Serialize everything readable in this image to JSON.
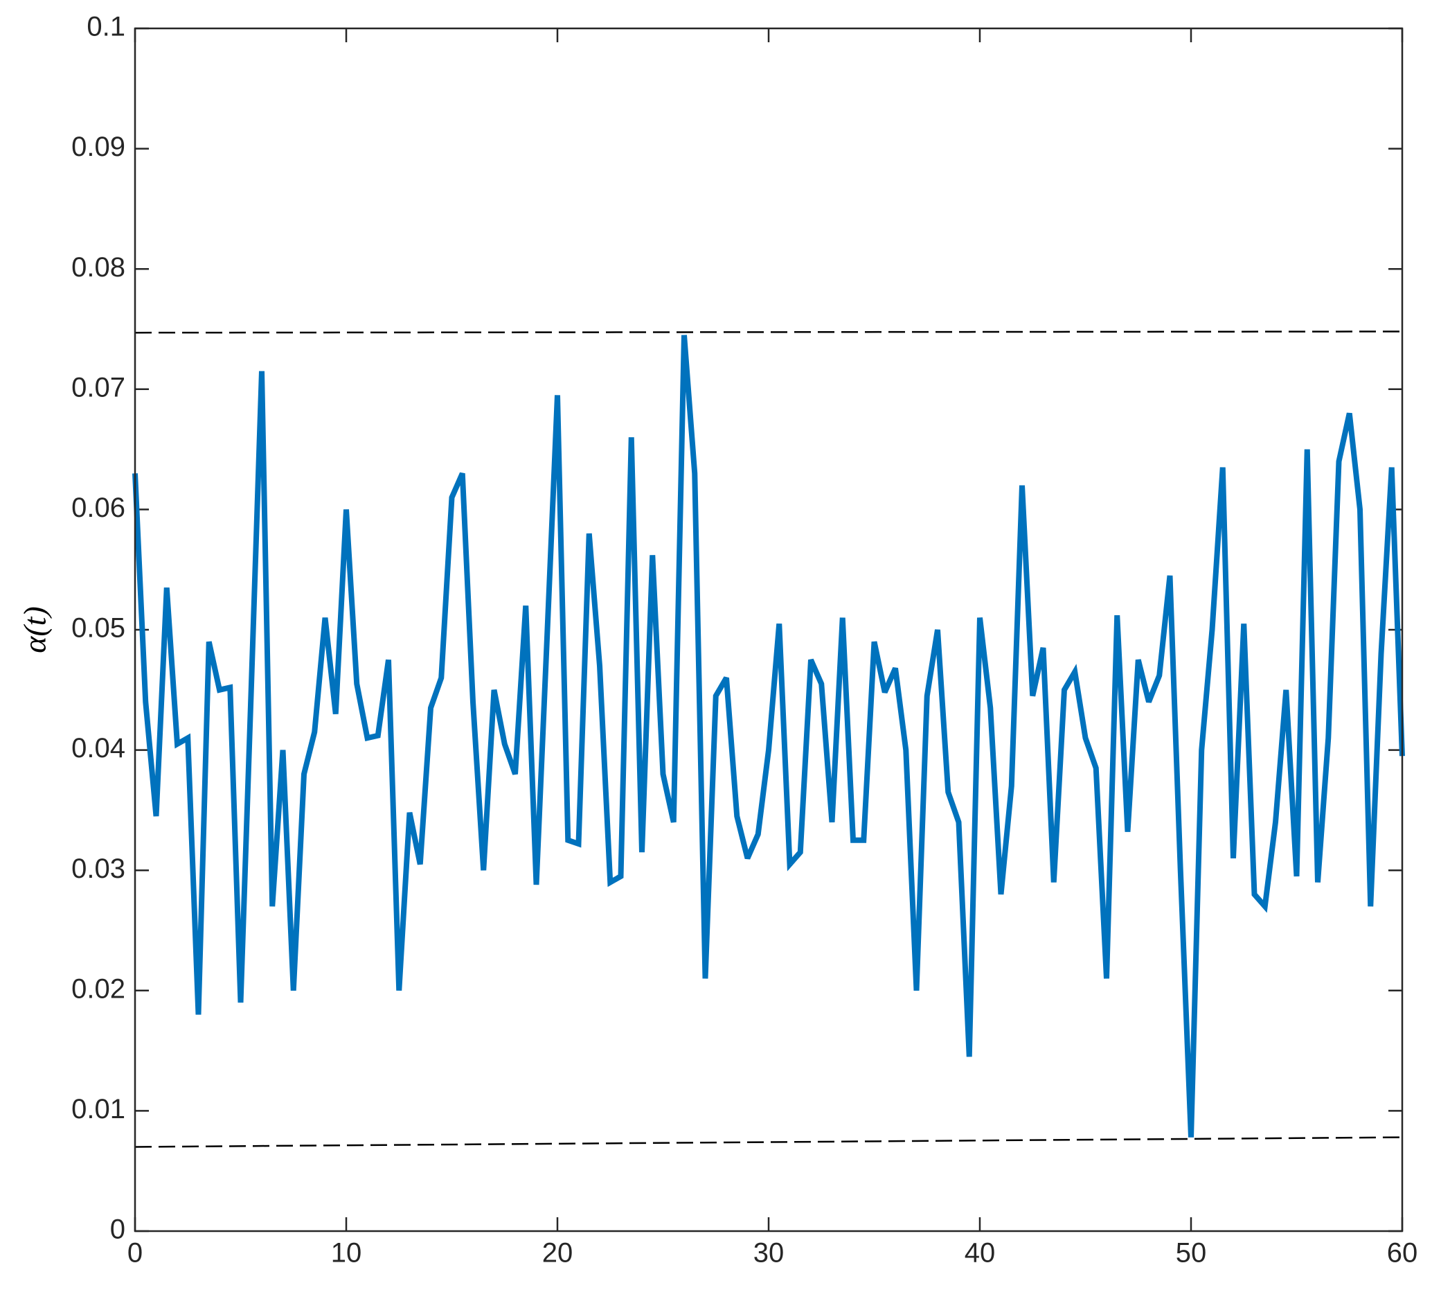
{
  "chart_data": {
    "type": "line",
    "y_label": "α(t)",
    "x": [
      0,
      0.5,
      1,
      1.5,
      2,
      2.5,
      3,
      3.5,
      4,
      4.5,
      5,
      5.5,
      6,
      6.5,
      7,
      7.5,
      8,
      8.5,
      9,
      9.5,
      10,
      10.5,
      11,
      11.5,
      12,
      12.5,
      13,
      13.5,
      14,
      14.5,
      15,
      15.5,
      16,
      16.5,
      17,
      17.5,
      18,
      18.5,
      19,
      19.5,
      20,
      20.5,
      21,
      21.5,
      22,
      22.5,
      23,
      23.5,
      24,
      24.5,
      25,
      25.5,
      26,
      26.5,
      27,
      27.5,
      28,
      28.5,
      29,
      29.5,
      30,
      30.5,
      31,
      31.5,
      32,
      32.5,
      33,
      33.5,
      34,
      34.5,
      35,
      35.5,
      36,
      36.5,
      37,
      37.5,
      38,
      38.5,
      39,
      39.5,
      40,
      40.5,
      41,
      41.5,
      42,
      42.5,
      43,
      43.5,
      44,
      44.5,
      45,
      45.5,
      46,
      46.5,
      47,
      47.5,
      48,
      48.5,
      49,
      49.5,
      50,
      50.5,
      51,
      51.5,
      52,
      52.5,
      53,
      53.5,
      54,
      54.5,
      55,
      55.5,
      56,
      56.5,
      57,
      57.5,
      58,
      58.5,
      59,
      59.5,
      60
    ],
    "series": [
      {
        "color": "#0072bd",
        "values": [
          0.063,
          0.044,
          0.0345,
          0.0535,
          0.0405,
          0.041,
          0.018,
          0.049,
          0.045,
          0.0452,
          0.019,
          0.045,
          0.0715,
          0.027,
          0.04,
          0.02,
          0.038,
          0.0415,
          0.051,
          0.043,
          0.06,
          0.0455,
          0.041,
          0.0412,
          0.0475,
          0.02,
          0.0348,
          0.0305,
          0.0435,
          0.046,
          0.061,
          0.063,
          0.044,
          0.03,
          0.045,
          0.0405,
          0.038,
          0.052,
          0.0288,
          0.049,
          0.0695,
          0.0325,
          0.0322,
          0.058,
          0.047,
          0.029,
          0.0295,
          0.066,
          0.0315,
          0.0562,
          0.038,
          0.034,
          0.0745,
          0.063,
          0.021,
          0.0445,
          0.046,
          0.0345,
          0.031,
          0.033,
          0.04,
          0.0505,
          0.0305,
          0.0315,
          0.0475,
          0.0455,
          0.034,
          0.051,
          0.0325,
          0.0325,
          0.049,
          0.0448,
          0.0468,
          0.04,
          0.02,
          0.0445,
          0.05,
          0.0365,
          0.034,
          0.0145,
          0.051,
          0.0435,
          0.028,
          0.037,
          0.062,
          0.0445,
          0.0485,
          0.029,
          0.045,
          0.0465,
          0.041,
          0.0385,
          0.021,
          0.0512,
          0.0332,
          0.0475,
          0.044,
          0.0462,
          0.0545,
          0.03,
          0.0078,
          0.04,
          0.05,
          0.0635,
          0.031,
          0.0505,
          0.028,
          0.027,
          0.034,
          0.045,
          0.0295,
          0.065,
          0.029,
          0.041,
          0.064,
          0.068,
          0.06,
          0.027,
          0.048,
          0.0635,
          0.0395
        ]
      },
      {
        "color": "#000000",
        "dashed": true,
        "x": [
          0,
          60
        ],
        "values": [
          0.0747,
          0.0748
        ]
      },
      {
        "color": "#000000",
        "dashed": true,
        "x": [
          0,
          60
        ],
        "values": [
          0.007,
          0.0078
        ]
      }
    ],
    "xlim": [
      0,
      60
    ],
    "xticks": [
      0,
      10,
      20,
      30,
      40,
      50,
      60
    ],
    "ylim": [
      0,
      0.1
    ],
    "yticks": [
      0,
      0.01,
      0.02,
      0.03,
      0.04,
      0.05,
      0.06,
      0.07,
      0.08,
      0.09,
      0.1
    ],
    "grid": false
  }
}
